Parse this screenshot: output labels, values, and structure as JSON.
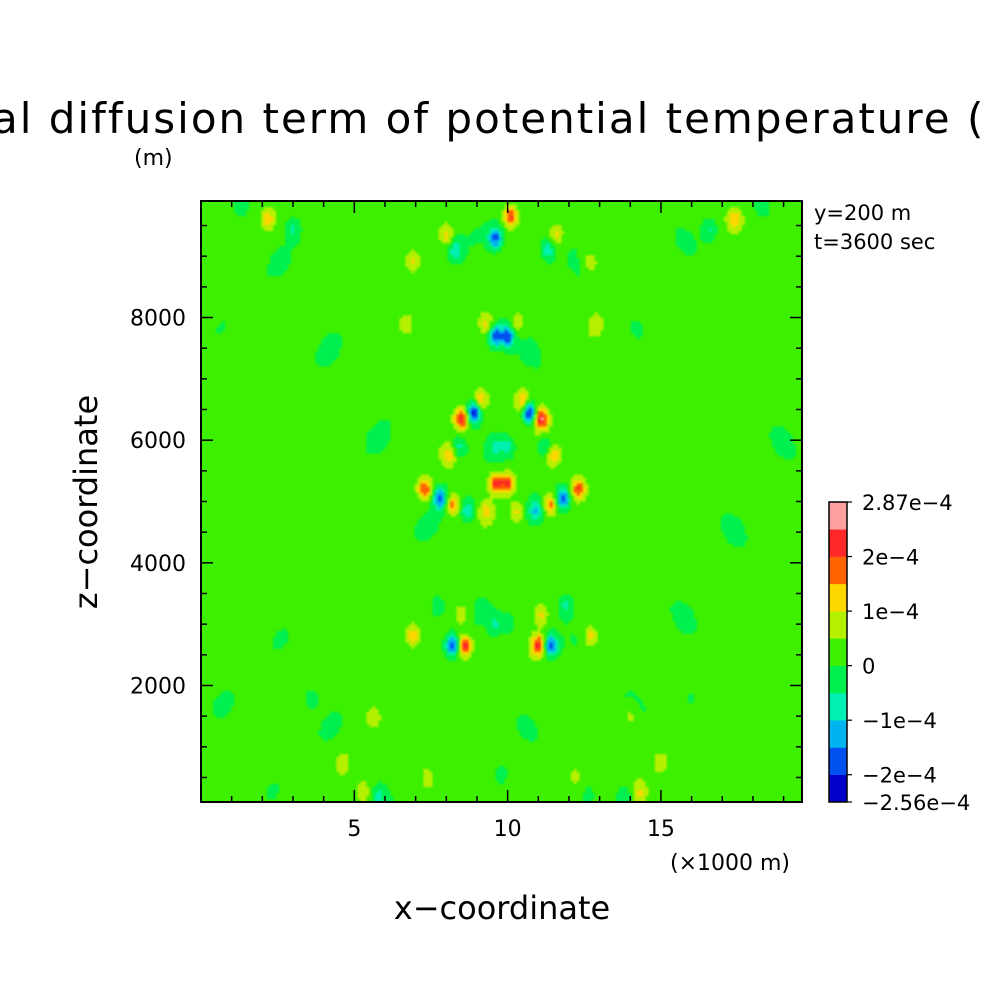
{
  "chart_data": {
    "type": "heatmap",
    "title": "al diffusion term of potential temperature (",
    "xlabel": "x−coordinate",
    "ylabel": "z−coordinate",
    "x_unit": "(×1000 m)",
    "y_unit": "(m)",
    "annotations": [
      "y=200 m",
      "t=3600 sec"
    ],
    "xlim": [
      0,
      19.6
    ],
    "ylim": [
      100,
      9900
    ],
    "x_ticks": [
      5,
      10,
      15
    ],
    "x_tick_labels": [
      "5",
      "10",
      "15"
    ],
    "y_ticks": [
      2000,
      4000,
      6000,
      8000
    ],
    "y_tick_labels": [
      "2000",
      "4000",
      "6000",
      "8000"
    ],
    "grid": false,
    "colorbar": {
      "labels": [
        {
          "value": 0.000287,
          "text": "2.87e−4"
        },
        {
          "value": 0.0002,
          "text": "2e−4"
        },
        {
          "value": 0.0001,
          "text": "1e−4"
        },
        {
          "value": 0,
          "text": "0"
        },
        {
          "value": -0.0001,
          "text": "−1e−4"
        },
        {
          "value": -0.0002,
          "text": "−2e−4"
        },
        {
          "value": -0.000256,
          "text": "−2.56e−4"
        }
      ],
      "levels": [
        -0.000256,
        -0.0002,
        -0.00015,
        -0.0001,
        -5e-05,
        0,
        5e-05,
        0.0001,
        0.00015,
        0.0002,
        0.00025,
        0.000287
      ],
      "colors": [
        "#0000c8",
        "#0050f0",
        "#00b4f0",
        "#00f0b4",
        "#00f050",
        "#3cf000",
        "#b4f000",
        "#ffd700",
        "#ff6400",
        "#ff2828",
        "#ffa0a0"
      ]
    },
    "field": {
      "background": 2e-05,
      "extrema": [
        {
          "x": 8.9,
          "z": 6450,
          "v": -0.000256
        },
        {
          "x": 10.7,
          "z": 6450,
          "v": -0.000256
        },
        {
          "x": 8.5,
          "z": 6350,
          "v": 0.00022
        },
        {
          "x": 11.1,
          "z": 6350,
          "v": 0.00022
        },
        {
          "x": 9.1,
          "z": 6650,
          "v": 0.00012
        },
        {
          "x": 10.5,
          "z": 6650,
          "v": 0.00012
        },
        {
          "x": 7.3,
          "z": 5200,
          "v": 0.00018
        },
        {
          "x": 12.3,
          "z": 5200,
          "v": 0.00018
        },
        {
          "x": 7.8,
          "z": 5050,
          "v": -0.00019
        },
        {
          "x": 11.8,
          "z": 5050,
          "v": -0.00019
        },
        {
          "x": 9.6,
          "z": 5300,
          "v": 0.00021
        },
        {
          "x": 10.0,
          "z": 5300,
          "v": 0.00021
        },
        {
          "x": 8.2,
          "z": 4950,
          "v": 0.00016
        },
        {
          "x": 11.4,
          "z": 4950,
          "v": 0.00016
        },
        {
          "x": 8.7,
          "z": 4850,
          "v": -0.00012
        },
        {
          "x": 10.9,
          "z": 4850,
          "v": -0.00012
        },
        {
          "x": 9.3,
          "z": 4850,
          "v": 9e-05
        },
        {
          "x": 10.3,
          "z": 4850,
          "v": 9e-05
        },
        {
          "x": 8.1,
          "z": 5750,
          "v": 0.00011
        },
        {
          "x": 11.5,
          "z": 5750,
          "v": 0.00011
        },
        {
          "x": 8.4,
          "z": 5900,
          "v": -9e-05
        },
        {
          "x": 11.2,
          "z": 5900,
          "v": -9e-05
        },
        {
          "x": 9.6,
          "z": 5900,
          "v": -8e-05
        },
        {
          "x": 10.0,
          "z": 5900,
          "v": -8e-05
        },
        {
          "x": 8.6,
          "z": 2650,
          "v": 0.00022
        },
        {
          "x": 11.0,
          "z": 2650,
          "v": 0.00022
        },
        {
          "x": 8.2,
          "z": 2650,
          "v": -0.0002
        },
        {
          "x": 11.4,
          "z": 2650,
          "v": -0.0002
        },
        {
          "x": 6.9,
          "z": 2800,
          "v": 0.00011
        },
        {
          "x": 12.7,
          "z": 2800,
          "v": 0.00011
        },
        {
          "x": 7.7,
          "z": 3300,
          "v": -8e-05
        },
        {
          "x": 11.9,
          "z": 3300,
          "v": -8e-05
        },
        {
          "x": 8.5,
          "z": 3150,
          "v": 9e-05
        },
        {
          "x": 11.1,
          "z": 3150,
          "v": 9e-05
        },
        {
          "x": 9.6,
          "z": 3000,
          "v": -7e-05
        },
        {
          "x": 10.0,
          "z": 3000,
          "v": -7e-05
        },
        {
          "x": 9.6,
          "z": 7700,
          "v": -0.0002
        },
        {
          "x": 10.0,
          "z": 7700,
          "v": -0.0002
        },
        {
          "x": 9.3,
          "z": 7900,
          "v": 9e-05
        },
        {
          "x": 10.3,
          "z": 7900,
          "v": 9e-05
        },
        {
          "x": 9.6,
          "z": 9300,
          "v": -0.00019
        },
        {
          "x": 10.1,
          "z": 9650,
          "v": 0.0002
        },
        {
          "x": 8.3,
          "z": 9100,
          "v": -0.0001
        },
        {
          "x": 11.3,
          "z": 9100,
          "v": -0.0001
        },
        {
          "x": 8.0,
          "z": 9350,
          "v": 0.0001
        },
        {
          "x": 11.6,
          "z": 9350,
          "v": 0.0001
        },
        {
          "x": 2.2,
          "z": 9600,
          "v": 0.00011
        },
        {
          "x": 17.4,
          "z": 9600,
          "v": 0.00011
        },
        {
          "x": 1.3,
          "z": 9800,
          "v": -7e-05
        },
        {
          "x": 18.3,
          "z": 9800,
          "v": -7e-05
        },
        {
          "x": 3.0,
          "z": 9450,
          "v": -7e-05
        },
        {
          "x": 16.6,
          "z": 9450,
          "v": -7e-05
        },
        {
          "x": 6.9,
          "z": 8900,
          "v": 9e-05
        },
        {
          "x": 12.7,
          "z": 8900,
          "v": 9e-05
        },
        {
          "x": 6.7,
          "z": 7900,
          "v": 7e-05
        },
        {
          "x": 12.9,
          "z": 7900,
          "v": 7e-05
        },
        {
          "x": 5.3,
          "z": 250,
          "v": 8e-05
        },
        {
          "x": 14.3,
          "z": 250,
          "v": 8e-05
        },
        {
          "x": 5.8,
          "z": 200,
          "v": -7e-05
        },
        {
          "x": 13.8,
          "z": 200,
          "v": -7e-05
        },
        {
          "x": 7.4,
          "z": 500,
          "v": 7e-05
        },
        {
          "x": 12.2,
          "z": 500,
          "v": 7e-05
        },
        {
          "x": 9.8,
          "z": 550,
          "v": -6e-05
        },
        {
          "x": 4.6,
          "z": 750,
          "v": 7e-05
        },
        {
          "x": 15.0,
          "z": 750,
          "v": 7e-05
        },
        {
          "x": 3.6,
          "z": 1800,
          "v": -5e-05
        },
        {
          "x": 16.0,
          "z": 1800,
          "v": -5e-05
        },
        {
          "x": 5.6,
          "z": 1500,
          "v": 6e-05
        },
        {
          "x": 14.0,
          "z": 1500,
          "v": 6e-05
        }
      ]
    }
  }
}
